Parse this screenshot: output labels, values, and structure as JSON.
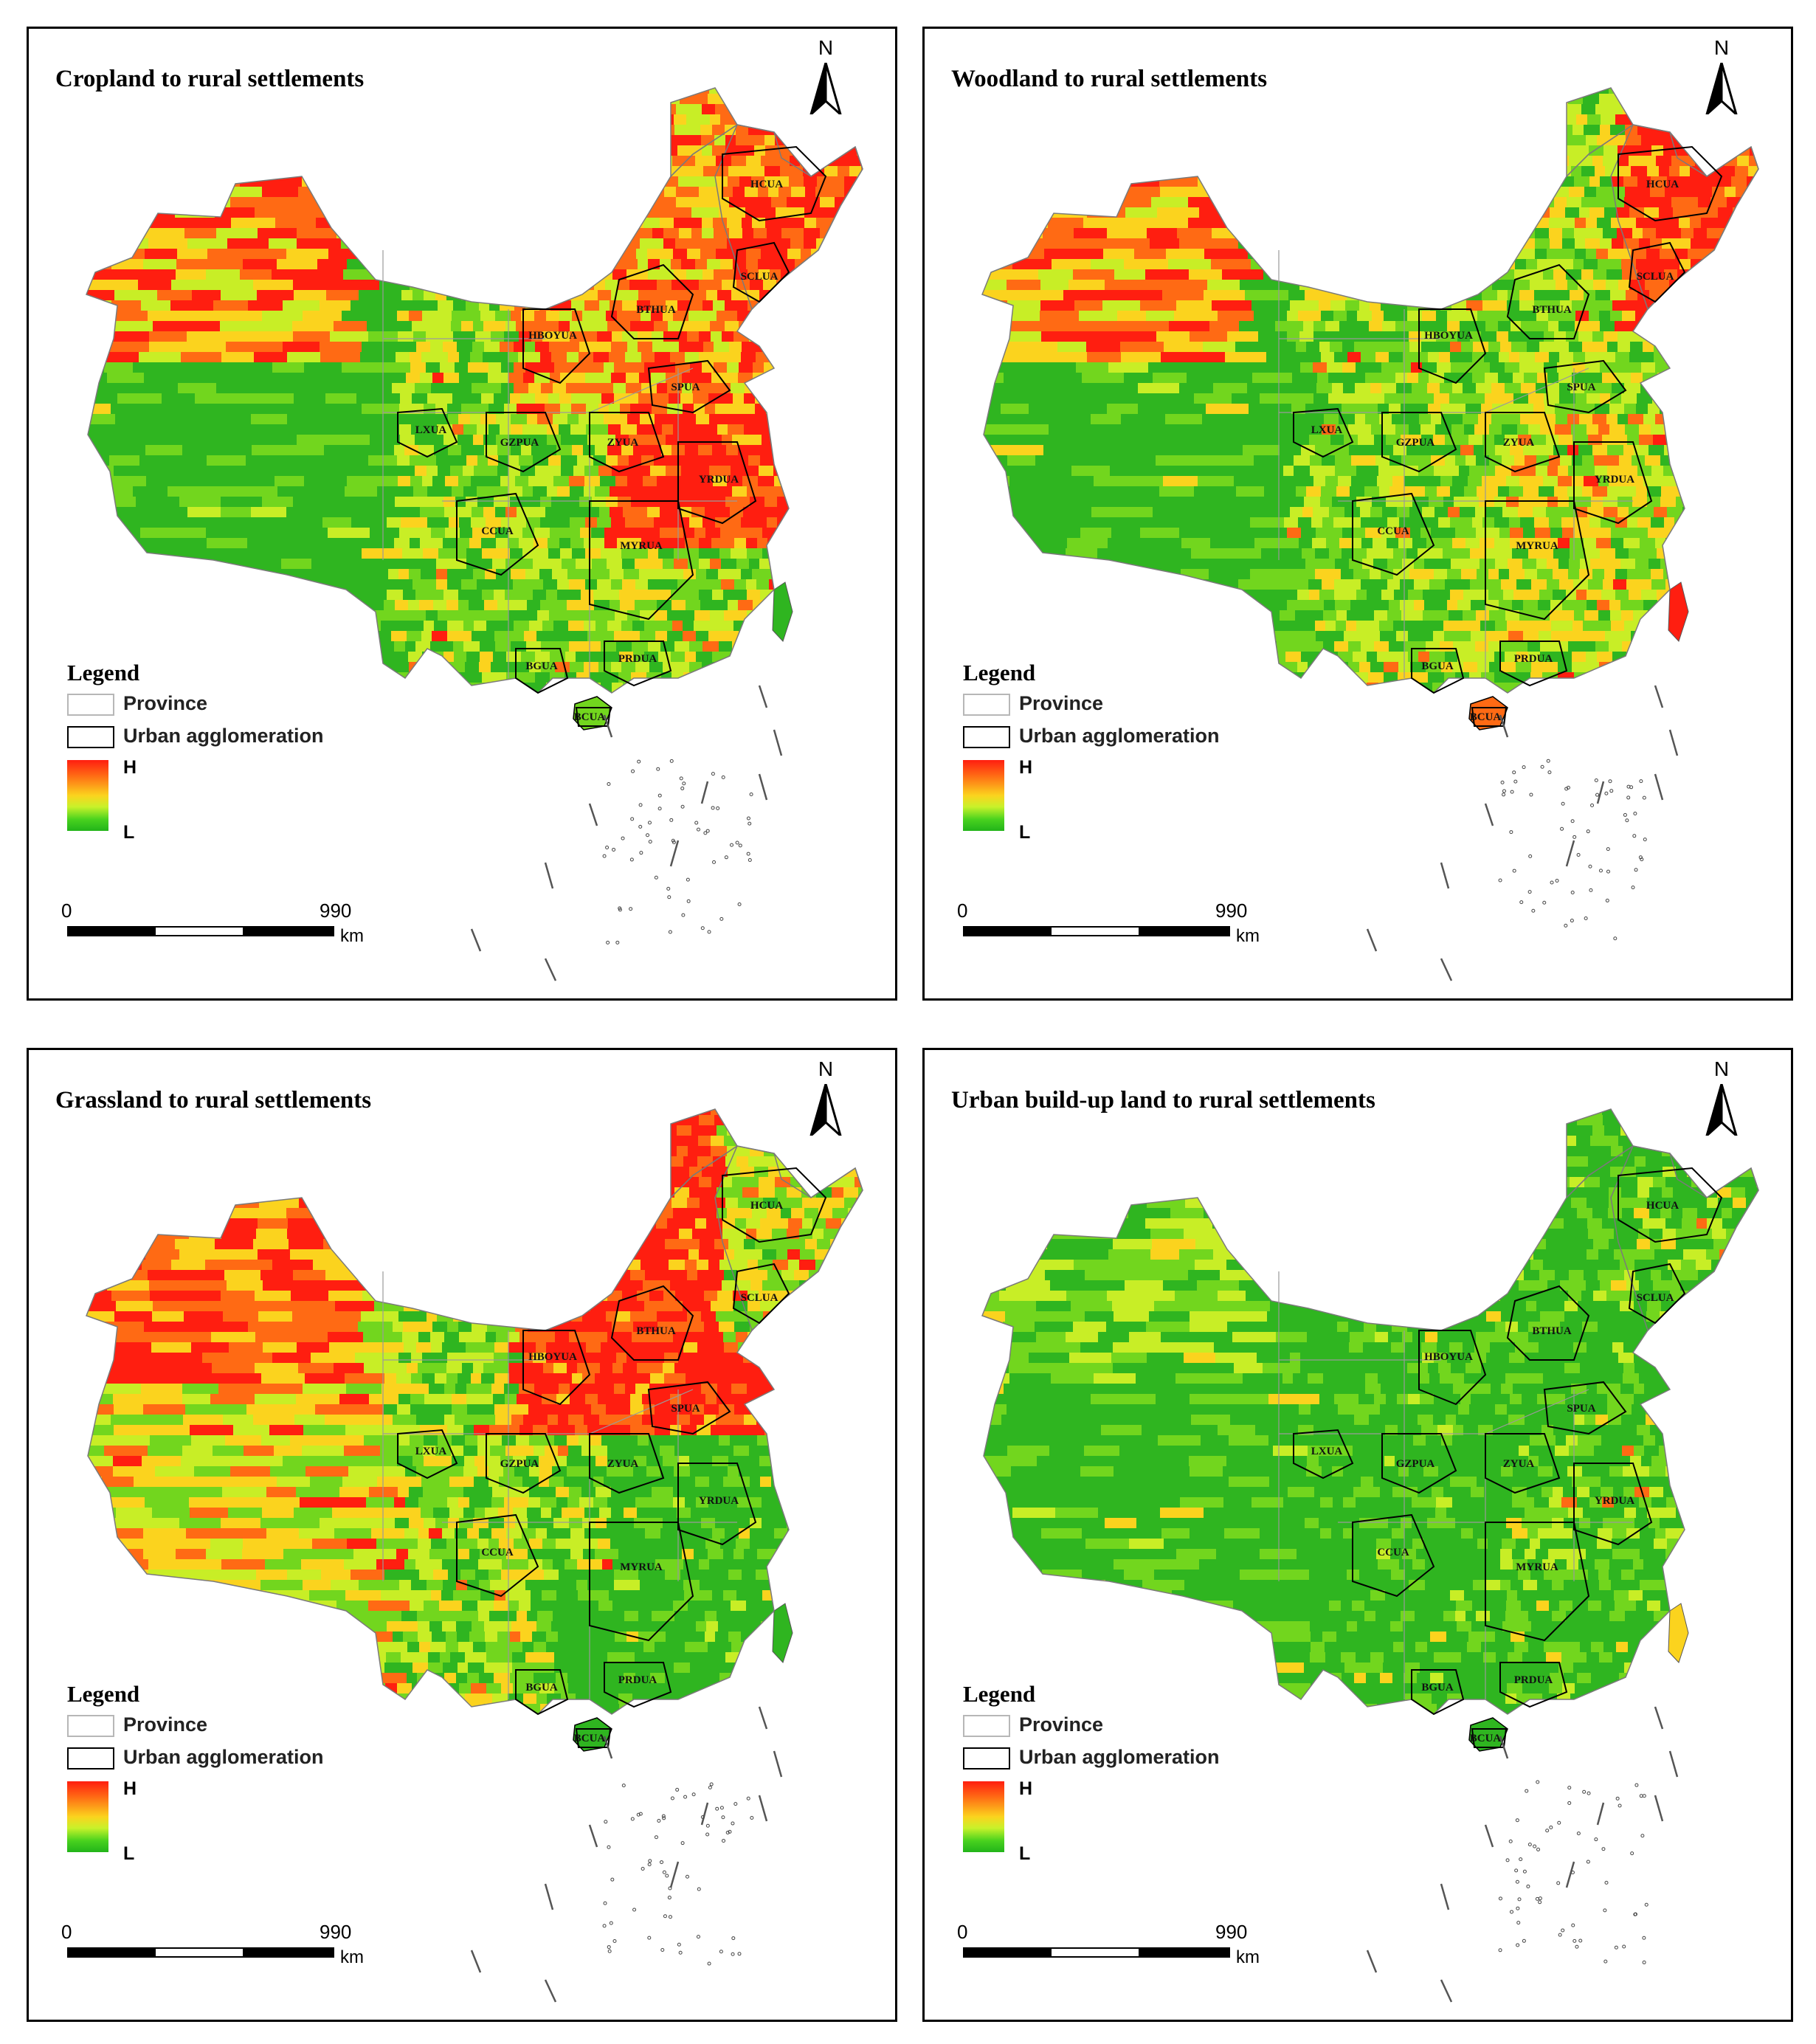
{
  "panels": [
    {
      "title": "Cropland to rural settlements",
      "north_label": "N",
      "legend": {
        "title": "Legend",
        "province": "Province",
        "urban": "Urban agglomeration",
        "high": "H",
        "low": "L"
      },
      "scale": {
        "start": "0",
        "end": "990",
        "unit": "km"
      },
      "ua_labels": [
        "HCUA",
        "SCLUA",
        "BTHUA",
        "HBOYUA",
        "SPUA",
        "LXUA",
        "GZPUA",
        "ZYUA",
        "YRDUA",
        "CCUA",
        "MYRUA",
        "BGUA",
        "PRDUA",
        "BCUA"
      ],
      "intensity": "high-east"
    },
    {
      "title": "Woodland to rural settlements",
      "north_label": "N",
      "legend": {
        "title": "Legend",
        "province": "Province",
        "urban": "Urban agglomeration",
        "high": "H",
        "low": "L"
      },
      "scale": {
        "start": "0",
        "end": "990",
        "unit": "km"
      },
      "ua_labels": [
        "HCUA",
        "SCLUA",
        "BTHUA",
        "HBOYUA",
        "SPUA",
        "LXUA",
        "GZPUA",
        "ZYUA",
        "YRDUA",
        "CCUA",
        "MYRUA",
        "BGUA",
        "PRDUA",
        "BCUA"
      ],
      "intensity": "scattered"
    },
    {
      "title": "Grassland to rural settlements",
      "north_label": "N",
      "legend": {
        "title": "Legend",
        "province": "Province",
        "urban": "Urban agglomeration",
        "high": "H",
        "low": "L"
      },
      "scale": {
        "start": "0",
        "end": "990",
        "unit": "km"
      },
      "ua_labels": [
        "HCUA",
        "SCLUA",
        "BTHUA",
        "HBOYUA",
        "SPUA",
        "LXUA",
        "GZPUA",
        "ZYUA",
        "YRDUA",
        "CCUA",
        "MYRUA",
        "BGUA",
        "PRDUA",
        "BCUA"
      ],
      "intensity": "high-north"
    },
    {
      "title": "Urban build-up land to rural settlements",
      "north_label": "N",
      "legend": {
        "title": "Legend",
        "province": "Province",
        "urban": "Urban agglomeration",
        "high": "H",
        "low": "L"
      },
      "scale": {
        "start": "0",
        "end": "990",
        "unit": "km"
      },
      "ua_labels": [
        "HCUA",
        "SCLUA",
        "BTHUA",
        "HBOYUA",
        "SPUA",
        "LXUA",
        "GZPUA",
        "ZYUA",
        "YRDUA",
        "CCUA",
        "MYRUA",
        "BGUA",
        "PRDUA",
        "BCUA"
      ],
      "intensity": "low"
    }
  ],
  "colors": {
    "high": "#ff1e10",
    "upper": "#ff6a14",
    "mid": "#fbd31e",
    "lowmid": "#b8ec28",
    "low": "#2fb520",
    "province_line": "#9a9a9a",
    "urban_line": "#000000"
  }
}
